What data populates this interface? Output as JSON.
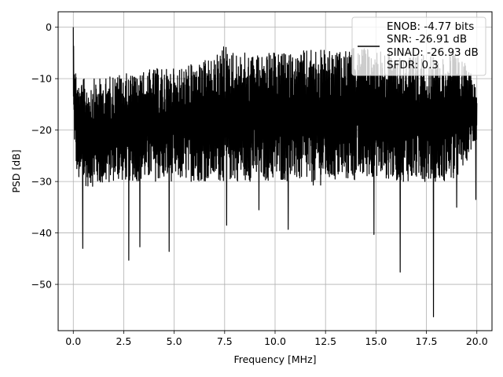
{
  "chart_data": {
    "type": "line",
    "title": "",
    "xlabel": "Frequency [MHz]",
    "ylabel": "PSD [dB]",
    "xlim": [
      -0.75,
      20.75
    ],
    "ylim": [
      -59,
      3
    ],
    "xticks": [
      0.0,
      2.5,
      5.0,
      7.5,
      10.0,
      12.5,
      15.0,
      17.5,
      20.0
    ],
    "xtick_labels": [
      "0.0",
      "2.5",
      "5.0",
      "7.5",
      "10.0",
      "12.5",
      "15.0",
      "17.5",
      "20.0"
    ],
    "yticks": [
      0,
      -10,
      -20,
      -30,
      -40,
      -50
    ],
    "ytick_labels": [
      "0",
      "−10",
      "−20",
      "−30",
      "−40",
      "−50"
    ],
    "grid": true,
    "legend_position": "top-right",
    "legend_lines": [
      "ENOB: -4.77 bits",
      "SNR: -26.91 dB",
      "SINAD: -26.93 dB",
      "SFDR: 0.3"
    ],
    "series": [
      {
        "color": "#000000",
        "envelope": {
          "freq": [
            0.0,
            0.1,
            0.3,
            0.5,
            1.0,
            1.5,
            2.0,
            3.0,
            4.0,
            5.0,
            6.0,
            7.0,
            7.5,
            8.0,
            9.0,
            10.0,
            11.0,
            12.0,
            13.0,
            14.0,
            15.0,
            16.0,
            17.0,
            18.0,
            19.0,
            20.0
          ],
          "upper": [
            0,
            -7,
            -11,
            -10,
            -10,
            -10,
            -9,
            -9,
            -8,
            -8,
            -7,
            -6,
            -3,
            -5,
            -5,
            -5,
            -5,
            -4,
            -5,
            -4,
            -4,
            -5,
            -5,
            -6,
            -5,
            -10
          ],
          "lower": [
            -18,
            -27,
            -31,
            -31,
            -31,
            -31,
            -30,
            -30,
            -30,
            -30,
            -30,
            -30,
            -30,
            -30,
            -30,
            -30,
            -30,
            -31,
            -30,
            -30,
            -29,
            -30,
            -30,
            -30,
            -30,
            -22
          ]
        },
        "deep_minima": [
          {
            "x": 0.47,
            "y": -43
          },
          {
            "x": 2.75,
            "y": -45.3
          },
          {
            "x": 3.3,
            "y": -42.7
          },
          {
            "x": 4.75,
            "y": -43.6
          },
          {
            "x": 7.6,
            "y": -38.5
          },
          {
            "x": 9.2,
            "y": -35.5
          },
          {
            "x": 10.65,
            "y": -39.3
          },
          {
            "x": 14.9,
            "y": -40.3
          },
          {
            "x": 16.2,
            "y": -47.6
          },
          {
            "x": 17.85,
            "y": -56.3
          },
          {
            "x": 19.0,
            "y": -35
          },
          {
            "x": 19.95,
            "y": -33.5
          }
        ]
      }
    ]
  }
}
